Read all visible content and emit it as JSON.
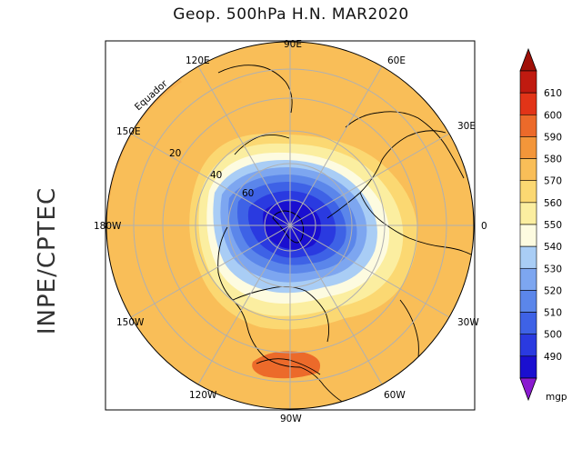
{
  "title": "Geop. 500hPa H.N. MAR2020",
  "side_label": "INPE/CPTEC",
  "equator_label": "Equador",
  "longitude_labels": [
    {
      "text": "90E",
      "lon": 90
    },
    {
      "text": "60E",
      "lon": 60
    },
    {
      "text": "30E",
      "lon": 30
    },
    {
      "text": "0",
      "lon": 0
    },
    {
      "text": "30W",
      "lon": -30
    },
    {
      "text": "60W",
      "lon": -60
    },
    {
      "text": "90W",
      "lon": -90
    },
    {
      "text": "120W",
      "lon": -120
    },
    {
      "text": "150W",
      "lon": -150
    },
    {
      "text": "180W",
      "lon": 180
    },
    {
      "text": "150E",
      "lon": 150
    },
    {
      "text": "120E",
      "lon": 120
    }
  ],
  "latitude_labels": [
    "20",
    "40",
    "60"
  ],
  "colorbar": {
    "unit": "mgp",
    "levels": [
      "490",
      "500",
      "510",
      "520",
      "530",
      "540",
      "550",
      "560",
      "570",
      "580",
      "590",
      "600",
      "610"
    ],
    "colors": [
      "#1a0fd0",
      "#2a3ae0",
      "#3e62e6",
      "#5b86ea",
      "#7da6f0",
      "#a9cdf5",
      "#fdfbe0",
      "#fbeea0",
      "#fbd872",
      "#f9be58",
      "#f3963a",
      "#ec6a2a",
      "#e23418",
      "#c01a10"
    ],
    "under_color": "#8a1ad0",
    "over_color": "#a01008"
  },
  "chart_data": {
    "type": "heatmap",
    "title": "Geop. 500hPa H.N. MAR2020",
    "variable": "500 hPa geopotential height",
    "units": "mgp",
    "region": "Northern Hemisphere, polar stereographic",
    "contour_levels": [
      490,
      500,
      510,
      520,
      530,
      540,
      550,
      560,
      570,
      580,
      590,
      600,
      610
    ],
    "lon_labels": [
      "90E",
      "60E",
      "30E",
      "0",
      "30W",
      "60W",
      "90W",
      "120W",
      "150W",
      "180W",
      "150E",
      "120E"
    ],
    "lat_labels": [
      "20",
      "40",
      "60"
    ]
  }
}
